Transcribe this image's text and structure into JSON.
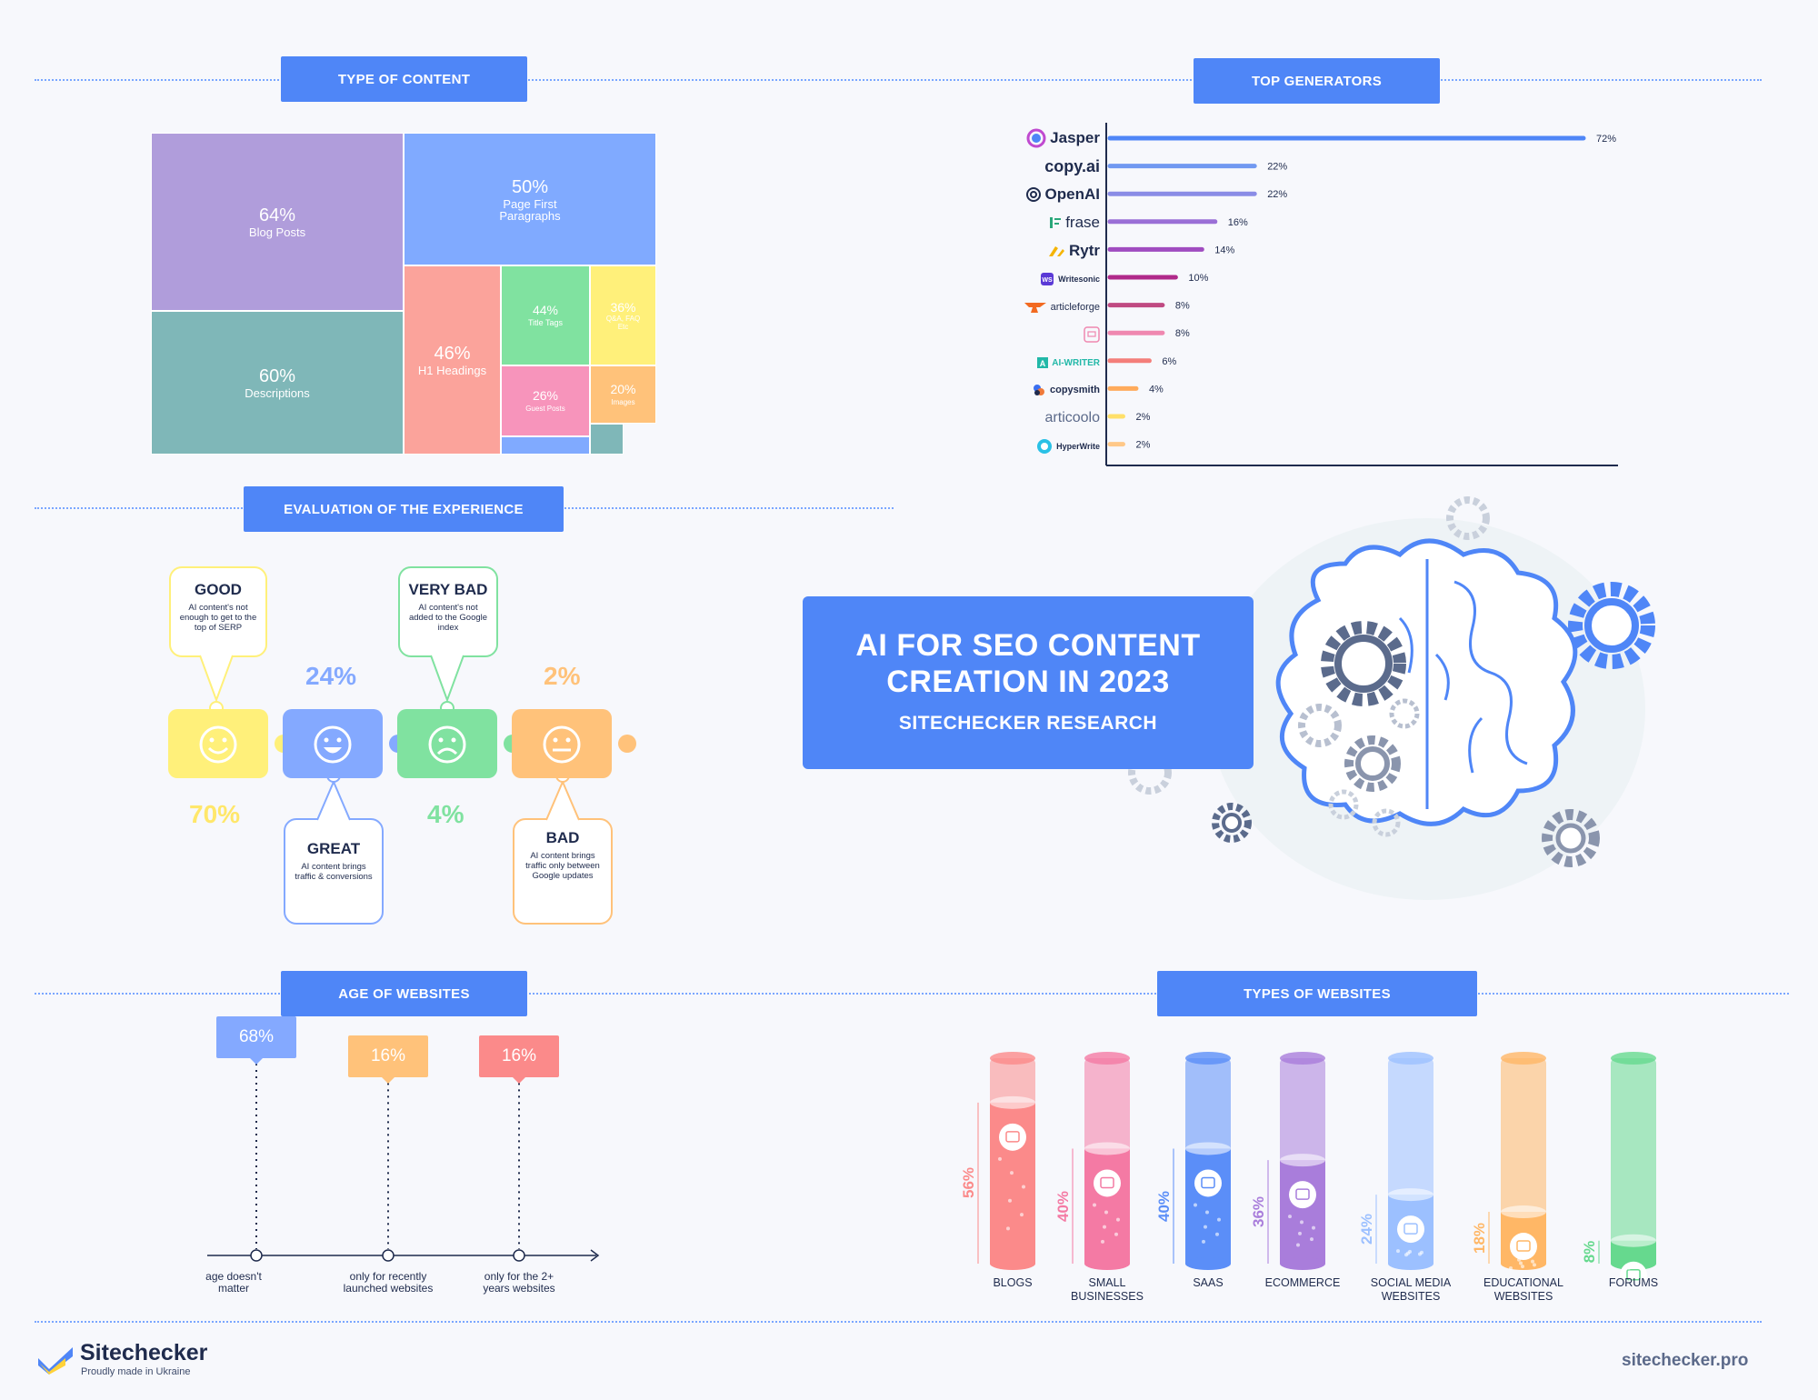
{
  "sections": {
    "type_of_content": "TYPE OF CONTENT",
    "top_generators": "TOP GENERATORS",
    "evaluation": "EVALUATION OF THE EXPERIENCE",
    "age": "AGE OF WEBSITES",
    "types_websites": "TYPES OF WEBSITES"
  },
  "hero": {
    "line1": "AI FOR SEO CONTENT",
    "line2": "CREATION IN 2023",
    "subtitle": "SITECHECKER RESEARCH"
  },
  "chart_data": [
    {
      "type": "treemap",
      "cells": [
        {
          "label": "Blog Posts",
          "value": "64%",
          "color": "#b09ddb"
        },
        {
          "label": "Descriptions",
          "value": "60%",
          "color": "#7fb7b8"
        },
        {
          "label": "Page First Paragraphs",
          "value": "50%",
          "color": "#80aaff"
        },
        {
          "label": "H1 Headings",
          "value": "46%",
          "color": "#fba39b"
        },
        {
          "label": "Title Tags",
          "value": "44%",
          "color": "#80e2a0"
        },
        {
          "label": "Q&A, FAQ Etc",
          "value": "36%",
          "color": "#fff07a"
        },
        {
          "label": "Guest Posts",
          "value": "26%",
          "color": "#f794bb"
        },
        {
          "label": "Images",
          "value": "20%",
          "color": "#ffc27a"
        }
      ]
    },
    {
      "type": "bar",
      "orientation": "horizontal",
      "categories": [
        "Jasper",
        "copy.ai",
        "OpenAI",
        "frase",
        "Rytr",
        "Writesonic",
        "articleforge",
        "",
        "AI-WRITER",
        "copysmith",
        "articoolo",
        "HyperWrite"
      ],
      "values": [
        72,
        22,
        22,
        16,
        14,
        10,
        8,
        8,
        6,
        4,
        2,
        2
      ],
      "labels": [
        "72%",
        "22%",
        "22%",
        "16%",
        "14%",
        "10%",
        "8%",
        "8%",
        "6%",
        "4%",
        "2%",
        "2%"
      ],
      "colors": [
        "#4f86f7",
        "#7199f1",
        "#8a8ce6",
        "#9a6fd6",
        "#a04cc0",
        "#b02a8a",
        "#c04a82",
        "#ef88b0",
        "#f47e7a",
        "#ffab5c",
        "#ffe06a",
        "#ffc888"
      ],
      "xlim": [
        0,
        72
      ]
    },
    {
      "type": "rating",
      "items": [
        {
          "title": "GOOD",
          "desc": "AI content's not enough to get to the top of SERP",
          "value": "70%",
          "color": "#fff07a",
          "text_color": "#ffe76a"
        },
        {
          "title": "GREAT",
          "desc": "AI content brings traffic & conversions",
          "value": "24%",
          "color": "#84a9ff",
          "text_color": "#84a9ff"
        },
        {
          "title": "VERY BAD",
          "desc": "AI content's not added to the Google index",
          "value": "4%",
          "color": "#80e2a0",
          "text_color": "#80e2a0"
        },
        {
          "title": "BAD",
          "desc": "AI content brings traffic only between Google updates",
          "value": "2%",
          "color": "#ffc27a",
          "text_color": "#ffc27a"
        }
      ]
    },
    {
      "type": "bar",
      "title": "",
      "categories": [
        "age doesn't matter",
        "only for recently launched websites",
        "only for the 2+ years websites"
      ],
      "values": [
        68,
        16,
        16
      ],
      "labels": [
        "68%",
        "16%",
        "16%"
      ],
      "colors": [
        "#84a9ff",
        "#ffc27a",
        "#fb8a8a"
      ]
    },
    {
      "type": "bar",
      "categories": [
        "BLOGS",
        "SMALL BUSINESSES",
        "SAAS",
        "ECOMMERCE",
        "SOCIAL MEDIA WEBSITES",
        "EDUCATIONAL WEBSITES",
        "FORUMS"
      ],
      "values": [
        56,
        40,
        40,
        36,
        24,
        18,
        8
      ],
      "labels": [
        "56%",
        "40%",
        "40%",
        "36%",
        "24%",
        "18%",
        "8%"
      ],
      "colors": [
        "#fb8a8a",
        "#f47aa4",
        "#5b8ef8",
        "#a97ddb",
        "#9cc0ff",
        "#ffb766",
        "#66d98e"
      ]
    }
  ],
  "footer": {
    "brand": "Sitechecker",
    "tagline": "Proudly made in Ukraine",
    "url": "sitechecker.pro"
  }
}
